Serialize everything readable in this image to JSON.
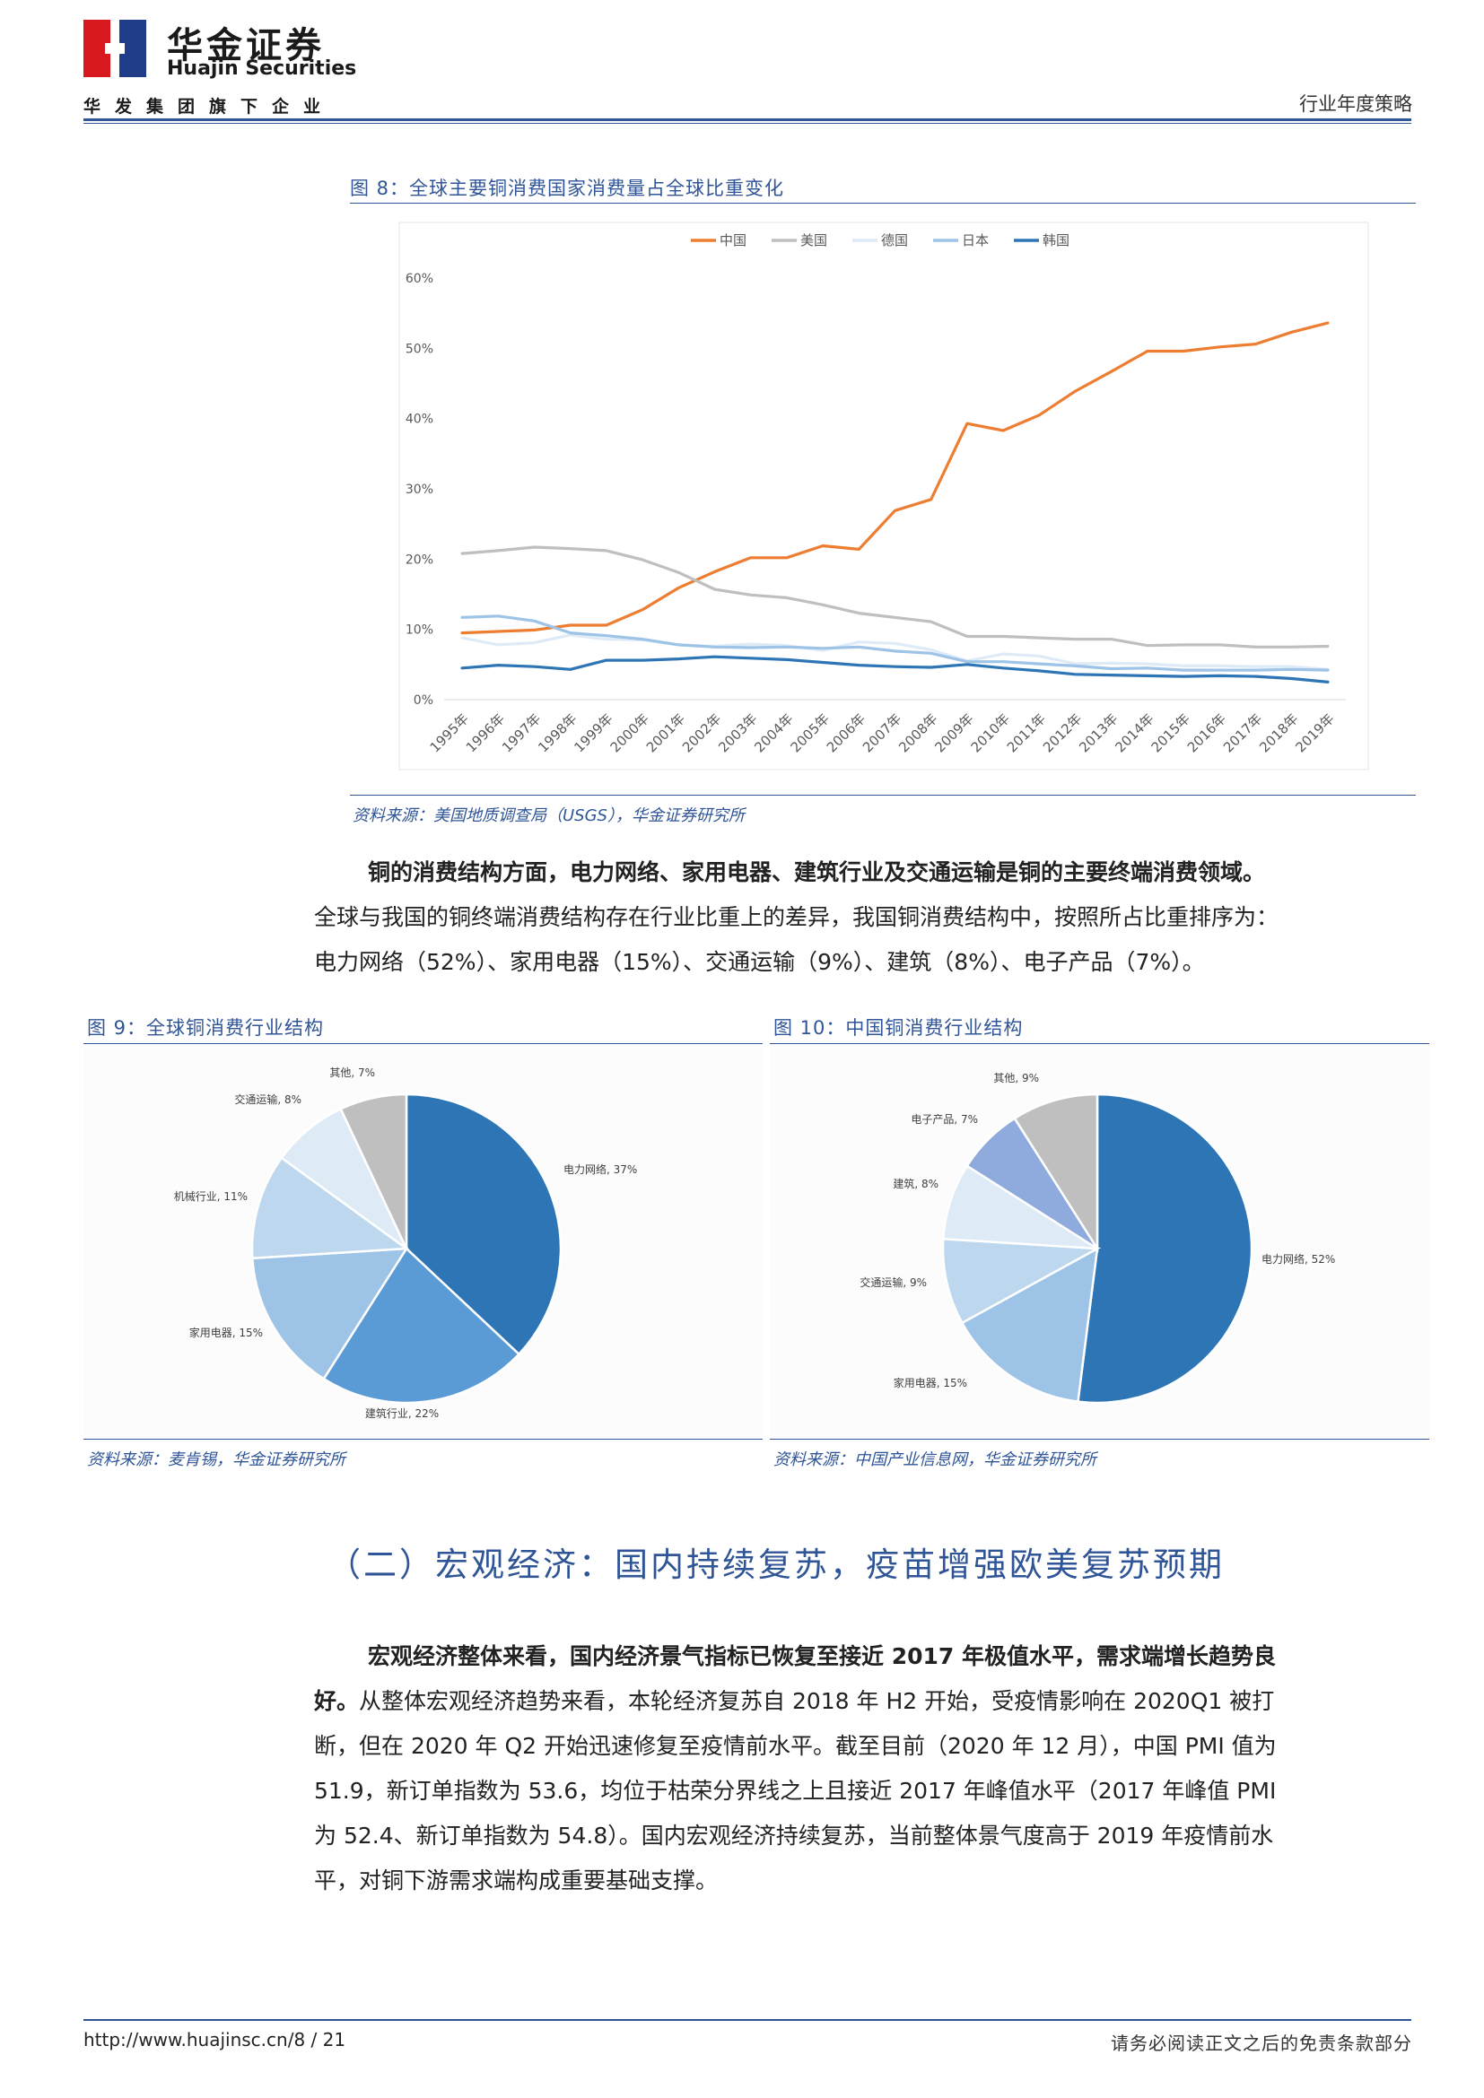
{
  "header": {
    "brand_cn": "华金证券",
    "brand_en": "Huajin Securities",
    "brand_sub": "华发集团旗下企业",
    "report_type": "行业年度策略"
  },
  "figure8": {
    "caption": "图 8：全球主要铜消费国家消费量占全球比重变化",
    "source": "资料来源：美国地质调查局（USGS），华金证券研究所"
  },
  "figure9": {
    "caption": "图 9：全球铜消费行业结构",
    "source": "资料来源：麦肯锡，华金证券研究所"
  },
  "figure10": {
    "caption": "图 10：中国铜消费行业结构",
    "source": "资料来源：中国产业信息网，华金证券研究所"
  },
  "paragraph1": {
    "bold": "铜的消费结构方面，电力网络、家用电器、建筑行业及交通运输是铜的主要终端消费领域。",
    "line2": "全球与我国的铜终端消费结构存在行业比重上的差异，我国铜消费结构中，按照所占比重排序为：",
    "line3": "电力网络（52%）、家用电器（15%）、交通运输（9%）、建筑（8%）、电子产品（7%）。"
  },
  "section": {
    "title": "（二）宏观经济：国内持续复苏，疫苗增强欧美复苏预期"
  },
  "paragraph2": {
    "bold_a": "宏观经济整体来看，国内经济景气指标已恢复至接近 2017 年极值水平，需求端增长趋势良",
    "bold_b": "好。",
    "rest_l2": "从整体宏观经济趋势来看，本轮经济复苏自 2018 年 H2 开始，受疫情影响在 2020Q1 被打",
    "line3": "断，但在 2020 年 Q2 开始迅速修复至疫情前水平。截至目前（2020 年 12 月），中国 PMI 值为",
    "line4": "51.9，新订单指数为 53.6，均位于枯荣分界线之上且接近 2017 年峰值水平（2017 年峰值 PMI",
    "line5": "为 52.4、新订单指数为 54.8）。国内宏观经济持续复苏，当前整体景气度高于 2019 年疫情前水",
    "line6": "平，对铜下游需求端构成重要基础支撑。"
  },
  "footer": {
    "url": "http://www.huajinsc.cn/8 / 21",
    "note": "请务必阅读正文之后的免责条款部分"
  },
  "colors": {
    "brand_red": "#d7191e",
    "brand_navy": "#1f3c88",
    "accent_blue": "#2f5597"
  },
  "chart_data": [
    {
      "type": "line",
      "categories": [
        "1995年",
        "1996年",
        "1997年",
        "1998年",
        "1999年",
        "2000年",
        "2001年",
        "2002年",
        "2003年",
        "2004年",
        "2005年",
        "2006年",
        "2007年",
        "2008年",
        "2009年",
        "2010年",
        "2011年",
        "2012年",
        "2013年",
        "2014年",
        "2015年",
        "2016年",
        "2017年",
        "2018年",
        "2019年"
      ],
      "ylim": [
        0,
        60
      ],
      "yticks": [
        "0%",
        "10%",
        "20%",
        "30%",
        "40%",
        "50%",
        "60%"
      ],
      "legend_position": "top",
      "series": [
        {
          "name": "中国",
          "color": "#ed7d31",
          "values": [
            9.5,
            9.7,
            9.9,
            10.6,
            10.6,
            12.8,
            15.9,
            18.2,
            20.2,
            20.2,
            21.9,
            21.4,
            26.9,
            28.5,
            39.3,
            38.3,
            40.5,
            43.9,
            46.7,
            49.6,
            49.6,
            50.2,
            50.6,
            52.3,
            53.6
          ]
        },
        {
          "name": "美国",
          "color": "#bfbfbf",
          "values": [
            20.8,
            21.2,
            21.7,
            21.5,
            21.2,
            19.9,
            18.1,
            15.7,
            14.9,
            14.5,
            13.5,
            12.3,
            11.7,
            11.1,
            9.0,
            9.0,
            8.8,
            8.6,
            8.6,
            7.7,
            7.8,
            7.8,
            7.5,
            7.5,
            7.6
          ]
        },
        {
          "name": "德国",
          "color": "#deebf7",
          "values": [
            8.8,
            7.8,
            8.1,
            9.2,
            8.6,
            8.5,
            7.8,
            7.6,
            7.9,
            7.7,
            7.0,
            8.2,
            8.0,
            7.1,
            5.5,
            6.5,
            6.2,
            5.1,
            5.2,
            5.1,
            4.8,
            4.8,
            4.7,
            4.7,
            4.3
          ]
        },
        {
          "name": "日本",
          "color": "#9dc3e6",
          "values": [
            11.7,
            11.9,
            11.2,
            9.5,
            9.1,
            8.6,
            7.8,
            7.5,
            7.4,
            7.5,
            7.3,
            7.5,
            6.9,
            6.6,
            5.4,
            5.4,
            5.1,
            4.8,
            4.4,
            4.5,
            4.2,
            4.2,
            4.2,
            4.3,
            4.2
          ]
        },
        {
          "name": "韩国",
          "color": "#2e75b6",
          "values": [
            4.5,
            4.9,
            4.7,
            4.3,
            5.6,
            5.6,
            5.8,
            6.1,
            5.9,
            5.7,
            5.3,
            4.9,
            4.7,
            4.6,
            5.0,
            4.5,
            4.1,
            3.6,
            3.5,
            3.4,
            3.3,
            3.4,
            3.3,
            3.0,
            2.5
          ]
        }
      ]
    },
    {
      "type": "pie",
      "slices": [
        {
          "label": "电力网络",
          "value": 37,
          "text": "电力网络, 37%",
          "color": "#2e75b6"
        },
        {
          "label": "建筑行业",
          "value": 22,
          "text": "建筑行业, 22%",
          "color": "#5b9bd5"
        },
        {
          "label": "家用电器",
          "value": 15,
          "text": "家用电器, 15%",
          "color": "#9dc3e6"
        },
        {
          "label": "机械行业",
          "value": 11,
          "text": "机械行业, 11%",
          "color": "#bdd7ee"
        },
        {
          "label": "交通运输",
          "value": 8,
          "text": "交通运输, 8%",
          "color": "#deebf7"
        },
        {
          "label": "其他",
          "value": 7,
          "text": "其他, 7%",
          "color": "#bfbfbf"
        }
      ]
    },
    {
      "type": "pie",
      "slices": [
        {
          "label": "电力网络",
          "value": 52,
          "text": "电力网络, 52%",
          "color": "#2e75b6"
        },
        {
          "label": "家用电器",
          "value": 15,
          "text": "家用电器, 15%",
          "color": "#9dc3e6"
        },
        {
          "label": "交通运输",
          "value": 9,
          "text": "交通运输, 9%",
          "color": "#bdd7ee"
        },
        {
          "label": "建筑",
          "value": 8,
          "text": "建筑, 8%",
          "color": "#deebf7"
        },
        {
          "label": "电子产品",
          "value": 7,
          "text": "电子产品, 7%",
          "color": "#8faadc"
        },
        {
          "label": "其他",
          "value": 9,
          "text": "其他, 9%",
          "color": "#bfbfbf"
        }
      ]
    }
  ]
}
